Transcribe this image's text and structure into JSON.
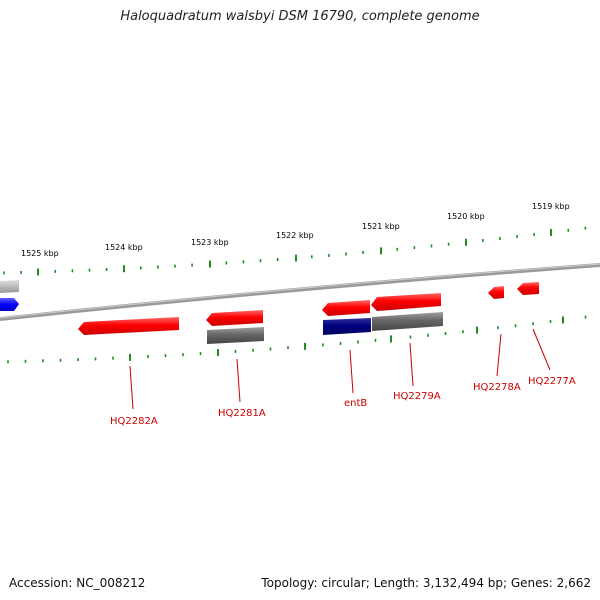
{
  "title": "Haloquadratum walsbyi DSM 16790, complete genome",
  "footer": {
    "accession": "Accession: NC_008212",
    "stats": "Topology: circular; Length: 3,132,494 bp; Genes: 2,662"
  },
  "colors": {
    "backbone": "#888888",
    "tick": "#228b22",
    "forward_gene": "#ff0000",
    "reverse_gene": "#666666",
    "highlight_gene": "#000080",
    "other_gene": "#0000ff",
    "label": "#cc0000"
  },
  "scale_ticks_kbp": [
    {
      "kbp": 1525,
      "label": "1525 kbp"
    },
    {
      "kbp": 1524,
      "label": "1524 kbp"
    },
    {
      "kbp": 1523,
      "label": "1523 kbp"
    },
    {
      "kbp": 1522,
      "label": "1522 kbp"
    },
    {
      "kbp": 1521,
      "label": "1521 kbp"
    },
    {
      "kbp": 1520,
      "label": "1520 kbp"
    },
    {
      "kbp": 1519,
      "label": "1519 kbp"
    }
  ],
  "gene_labels": [
    "HQ2282A",
    "HQ2281A",
    "entB",
    "HQ2279A",
    "HQ2278A",
    "HQ2277A"
  ]
}
